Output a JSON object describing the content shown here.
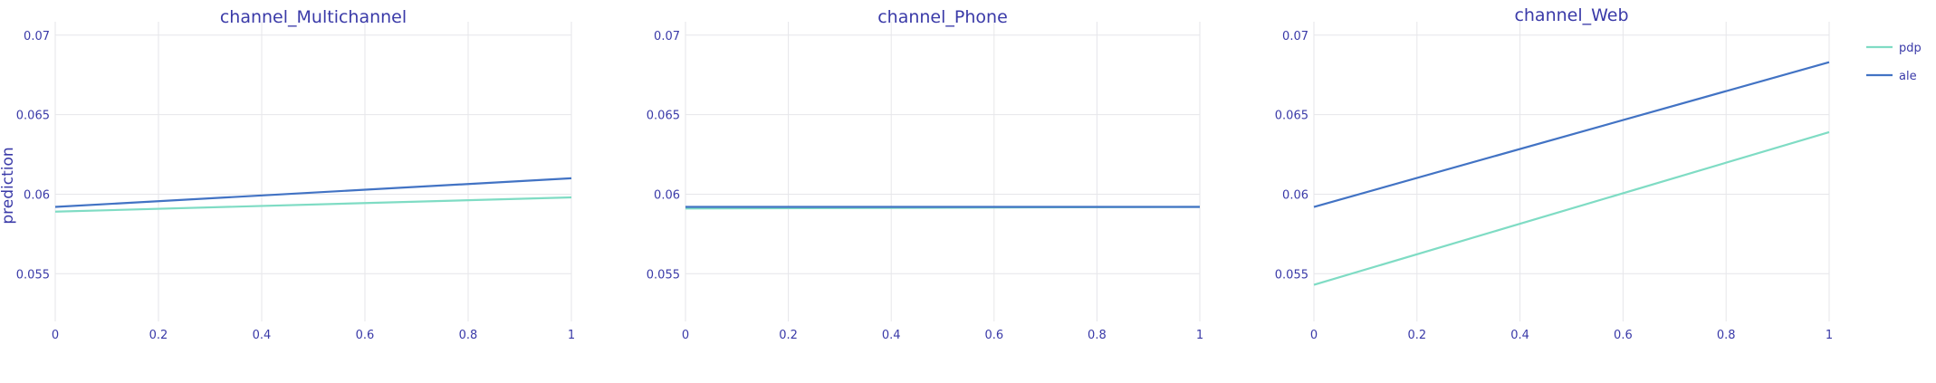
{
  "chart_data": {
    "type": "line",
    "ylabel": "prediction",
    "ylim": [
      0.052,
      0.0705
    ],
    "yticks": [
      0.055,
      0.06,
      0.065,
      0.07
    ],
    "ytick_labels": [
      "0.055",
      "0.06",
      "0.065",
      "0.07"
    ],
    "xticks": [
      0,
      0.2,
      0.4,
      0.6,
      0.8,
      1
    ],
    "xtick_labels": [
      "0",
      "0.2",
      "0.4",
      "0.6",
      "0.8",
      "1"
    ],
    "xlim": [
      0,
      1
    ],
    "legend": {
      "placement": "top-right",
      "entries": [
        {
          "name": "pdp",
          "color": "#7fdcc4"
        },
        {
          "name": "ale",
          "color": "#4273c4"
        }
      ]
    },
    "panels": [
      {
        "title": "channel_Multichannel",
        "series": [
          {
            "name": "pdp",
            "color": "#7fdcc4",
            "x": [
              0,
              1
            ],
            "y": [
              0.0589,
              0.0598
            ]
          },
          {
            "name": "ale",
            "color": "#4273c4",
            "x": [
              0,
              1
            ],
            "y": [
              0.0592,
              0.061
            ]
          }
        ]
      },
      {
        "title": "channel_Phone",
        "series": [
          {
            "name": "pdp",
            "color": "#7fdcc4",
            "x": [
              0,
              1
            ],
            "y": [
              0.0591,
              0.0592
            ]
          },
          {
            "name": "ale",
            "color": "#4273c4",
            "x": [
              0,
              1
            ],
            "y": [
              0.0592,
              0.0592
            ]
          }
        ]
      },
      {
        "title": "channel_Web",
        "series": [
          {
            "name": "pdp",
            "color": "#7fdcc4",
            "x": [
              0,
              1
            ],
            "y": [
              0.0543,
              0.0639
            ]
          },
          {
            "name": "ale",
            "color": "#4273c4",
            "x": [
              0,
              1
            ],
            "y": [
              0.0592,
              0.0683
            ]
          }
        ]
      }
    ]
  }
}
